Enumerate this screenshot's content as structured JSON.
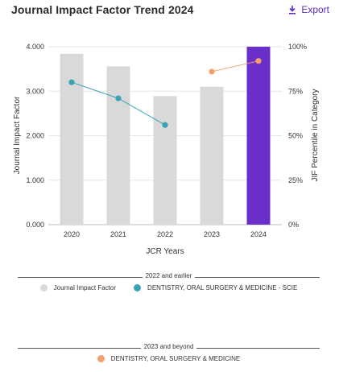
{
  "header": {
    "title": "Journal Impact Factor Trend 2024",
    "export_label": "Export"
  },
  "colors": {
    "bar": "#d9d9d9",
    "bar_highlight": "#6a2fc9",
    "series_a": "#37a3b5",
    "series_b": "#f4a06b",
    "grid": "#e6e6e6"
  },
  "chart_data": {
    "type": "bar",
    "categories": [
      "2020",
      "2021",
      "2022",
      "2023",
      "2024"
    ],
    "xlabel": "JCR Years",
    "ylabel": "Journal Impact Factor",
    "y2label": "JIF Percentile in Category",
    "ylim": [
      0,
      4
    ],
    "y2lim": [
      0,
      100
    ],
    "yticks": [
      "0.000",
      "1.000",
      "2.000",
      "3.000",
      "4.000"
    ],
    "y2ticks": [
      "0%",
      "25%",
      "50%",
      "75%",
      "100%"
    ],
    "grid": true,
    "series": [
      {
        "name": "Journal Impact Factor",
        "kind": "bar",
        "axis": "left",
        "values": [
          3.84,
          3.56,
          2.89,
          3.1,
          4.0
        ],
        "highlight_index": 4
      },
      {
        "name": "DENTISTRY, ORAL SURGERY & MEDICINE - SCIE",
        "kind": "line",
        "axis": "right",
        "x": [
          "2020",
          "2021",
          "2022"
        ],
        "values": [
          80,
          71,
          56
        ]
      },
      {
        "name": "DENTISTRY, ORAL SURGERY & MEDICINE",
        "kind": "line",
        "axis": "right",
        "x": [
          "2023",
          "2024"
        ],
        "values": [
          86,
          92
        ]
      }
    ]
  },
  "legend": {
    "group1_title": "2022 and earlier",
    "group1_items": [
      "Journal Impact Factor",
      "DENTISTRY, ORAL SURGERY & MEDICINE - SCIE"
    ],
    "group2_title": "2023 and beyond",
    "group2_items": [
      "DENTISTRY, ORAL SURGERY & MEDICINE"
    ]
  }
}
